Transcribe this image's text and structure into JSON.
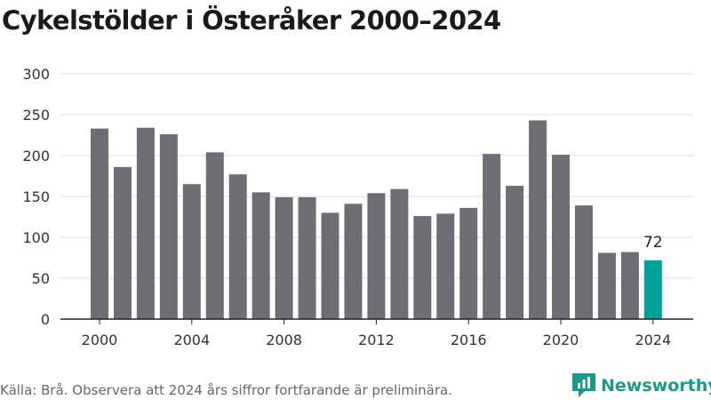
{
  "title": "Cykelstölder i Österåker 2000–2024",
  "source": "Källa: Brå. Observera att 2024 års siffror fortfarande är preliminära.",
  "brand": {
    "name": "Newsworthy",
    "color": "#1b9a8c"
  },
  "colors": {
    "bar": "#6e6d73",
    "highlight": "#00a19b",
    "grid": "#dddddd",
    "axis": "#222222"
  },
  "chart_data": {
    "type": "bar",
    "title": "Cykelstölder i Österåker 2000–2024",
    "xlabel": "",
    "ylabel": "",
    "categories": [
      2000,
      2001,
      2002,
      2003,
      2004,
      2005,
      2006,
      2007,
      2008,
      2009,
      2010,
      2011,
      2012,
      2013,
      2014,
      2015,
      2016,
      2017,
      2018,
      2019,
      2020,
      2021,
      2022,
      2023,
      2024
    ],
    "values": [
      233,
      186,
      234,
      226,
      165,
      204,
      177,
      155,
      149,
      149,
      130,
      141,
      154,
      159,
      126,
      129,
      136,
      202,
      163,
      243,
      201,
      139,
      81,
      82,
      72
    ],
    "ylim": [
      0,
      300
    ],
    "yticks": [
      0,
      50,
      100,
      150,
      200,
      250,
      300
    ],
    "xticks": [
      2000,
      2004,
      2008,
      2012,
      2016,
      2020,
      2024
    ],
    "highlight": {
      "category": 2024,
      "label": "72"
    },
    "grid": true,
    "legend": "none"
  }
}
